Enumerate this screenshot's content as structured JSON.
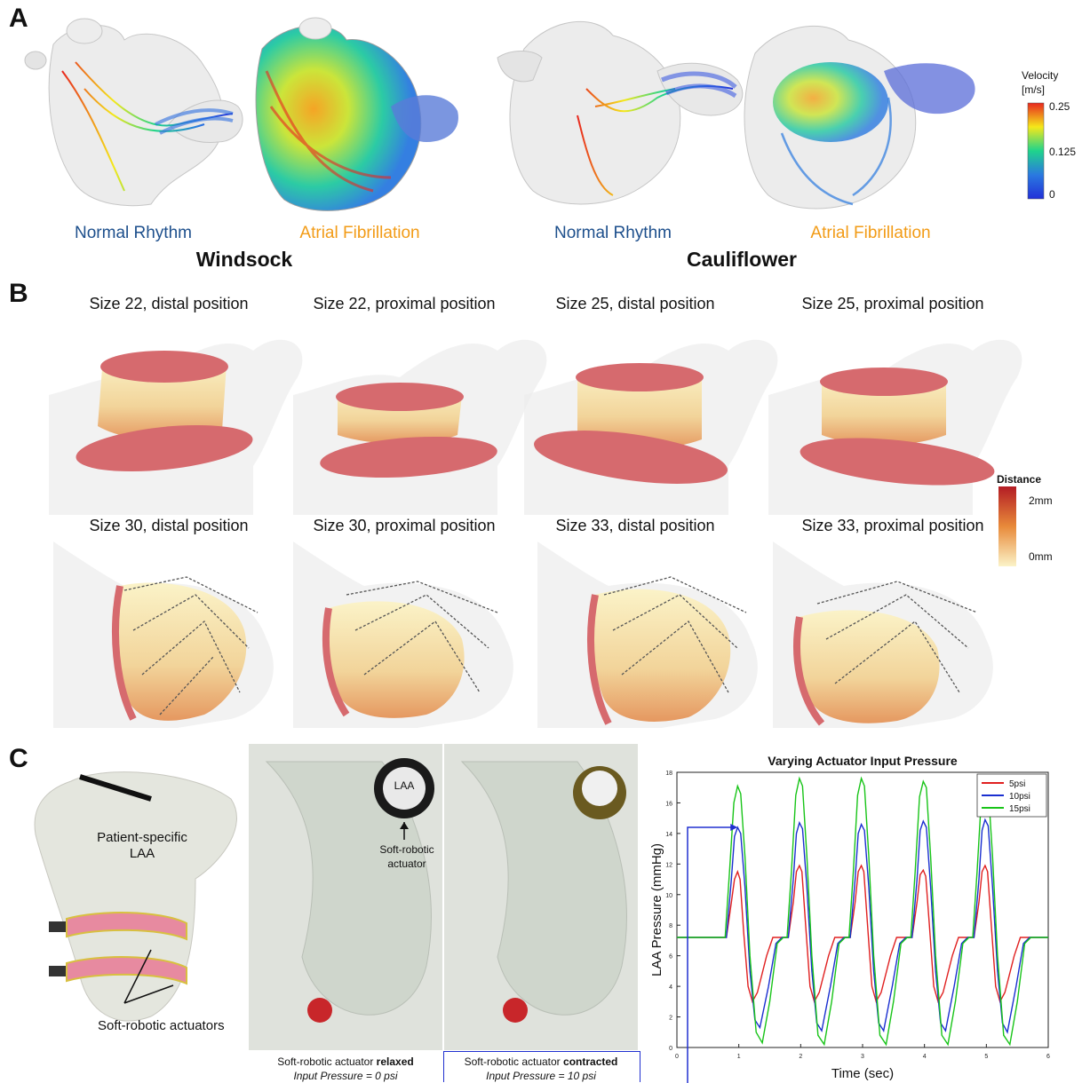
{
  "panelA": {
    "letter": "A",
    "models": [
      {
        "caption": "Normal Rhythm",
        "caption_color": "#1d4f8c"
      },
      {
        "caption": "Atrial Fibrillation",
        "caption_color": "#f29b16"
      },
      {
        "caption": "Normal Rhythm",
        "caption_color": "#1d4f8c"
      },
      {
        "caption": "Atrial Fibrillation",
        "caption_color": "#f29b16"
      }
    ],
    "groups": [
      "Windsock",
      "Cauliflower"
    ],
    "colorbar": {
      "title_line1": "Velocity",
      "title_line2": "[m/s]",
      "ticks": [
        "0.25",
        "0.125",
        "0"
      ],
      "colors": [
        "#e8271f",
        "#f5e81a",
        "#1fd48c",
        "#2a79e0",
        "#2230d8"
      ]
    }
  },
  "panelB": {
    "letter": "B",
    "titles": [
      "Size 22, distal position",
      "Size 22, proximal position",
      "Size 25, distal position",
      "Size 25, proximal position",
      "Size 30, distal position",
      "Size 30, proximal position",
      "Size 33, distal position",
      "Size 33, proximal position"
    ],
    "colorbar": {
      "title": "Distance",
      "ticks": [
        "2mm",
        "0mm"
      ],
      "colors": [
        "#b31c24",
        "#e88a3a",
        "#fbf3c8"
      ]
    }
  },
  "panelC": {
    "letter": "C",
    "device": {
      "label_line1": "Patient-specific",
      "label_line2": "LAA",
      "actuator_label": "Soft-robotic actuators"
    },
    "photo_relaxed": {
      "laa_label": "LAA",
      "actuator_label_line1": "Soft-robotic",
      "actuator_label_line2": "actuator",
      "caption_prefix": "Soft-robotic actuator ",
      "caption_bold": "relaxed",
      "caption_line2": "Input Pressure = 0 psi"
    },
    "photo_contracted": {
      "caption_prefix": "Soft-robotic actuator ",
      "caption_bold": "contracted",
      "caption_line2": "Input Pressure = 10 psi"
    }
  },
  "chart_data": {
    "type": "line",
    "title": "Varying Actuator Input Pressure",
    "xlabel": "Time (sec)",
    "ylabel": "LAA Pressure (mmHg)",
    "xlim": [
      0,
      6
    ],
    "ylim": [
      0,
      18
    ],
    "xticks": [
      "0",
      "1",
      "2",
      "3",
      "4",
      "5",
      "6"
    ],
    "yticks": [
      "0",
      "2",
      "4",
      "6",
      "8",
      "10",
      "12",
      "14",
      "16",
      "18"
    ],
    "legend_position": "top-right",
    "series": [
      {
        "name": "5psi",
        "color": "#e02020",
        "x": [
          0,
          0.8,
          0.88,
          0.93,
          0.98,
          1.02,
          1.08,
          1.15,
          1.22,
          1.3,
          1.45,
          1.55,
          1.6,
          1.68,
          1.8,
          1.88,
          1.93,
          1.98,
          2.02,
          2.08,
          2.15,
          2.22,
          2.3,
          2.45,
          2.55,
          2.6,
          2.68,
          2.8,
          2.88,
          2.93,
          2.98,
          3.02,
          3.08,
          3.15,
          3.22,
          3.3,
          3.45,
          3.55,
          3.6,
          3.68,
          3.8,
          3.88,
          3.93,
          3.98,
          4.02,
          4.08,
          4.15,
          4.22,
          4.3,
          4.45,
          4.55,
          4.6,
          4.68,
          4.8,
          4.88,
          4.93,
          4.98,
          5.02,
          5.08,
          5.15,
          5.22,
          5.3,
          5.45,
          5.55,
          5.6,
          5.7,
          6.0
        ],
        "y": [
          7.2,
          7.2,
          9.5,
          11.0,
          11.5,
          11.0,
          7.5,
          4.0,
          3.0,
          3.6,
          6.0,
          7.2,
          7.2,
          7.2,
          7.2,
          9.5,
          11.5,
          11.9,
          11.5,
          8.0,
          4.0,
          3.0,
          3.6,
          6.0,
          7.2,
          7.2,
          7.2,
          7.2,
          9.5,
          11.5,
          11.9,
          11.5,
          8.0,
          4.0,
          3.0,
          3.6,
          6.0,
          7.2,
          7.2,
          7.2,
          7.2,
          9.5,
          11.3,
          11.6,
          11.2,
          8.0,
          4.0,
          3.0,
          3.6,
          6.0,
          7.2,
          7.2,
          7.2,
          7.2,
          9.5,
          11.5,
          11.9,
          11.5,
          8.0,
          4.0,
          3.0,
          3.6,
          6.0,
          7.2,
          7.2,
          7.2,
          7.2
        ]
      },
      {
        "name": "10psi",
        "color": "#1a2fd0",
        "x": [
          0,
          0.8,
          0.88,
          0.93,
          0.98,
          1.03,
          1.1,
          1.18,
          1.26,
          1.34,
          1.48,
          1.6,
          1.7,
          1.8,
          1.88,
          1.93,
          1.98,
          2.03,
          2.1,
          2.18,
          2.26,
          2.34,
          2.48,
          2.6,
          2.7,
          2.8,
          2.88,
          2.93,
          2.98,
          3.03,
          3.1,
          3.18,
          3.26,
          3.34,
          3.48,
          3.6,
          3.7,
          3.8,
          3.88,
          3.93,
          3.98,
          4.03,
          4.1,
          4.18,
          4.26,
          4.34,
          4.48,
          4.6,
          4.7,
          4.8,
          4.88,
          4.93,
          4.98,
          5.03,
          5.1,
          5.18,
          5.26,
          5.34,
          5.48,
          5.6,
          5.7,
          6.0
        ],
        "y": [
          7.2,
          7.2,
          11.0,
          13.8,
          14.4,
          14.0,
          10.5,
          5.0,
          1.8,
          1.3,
          4.0,
          6.8,
          7.2,
          7.2,
          11.0,
          14.0,
          14.7,
          14.3,
          10.5,
          5.0,
          1.6,
          1.1,
          4.0,
          6.8,
          7.2,
          7.2,
          11.0,
          14.0,
          14.6,
          14.2,
          10.5,
          5.0,
          1.6,
          1.1,
          4.0,
          6.8,
          7.2,
          7.2,
          11.0,
          14.2,
          14.8,
          14.4,
          10.5,
          5.0,
          1.6,
          1.1,
          4.0,
          6.8,
          7.2,
          7.2,
          11.0,
          14.2,
          14.9,
          14.5,
          10.5,
          5.0,
          1.6,
          1.0,
          4.0,
          6.8,
          7.2,
          7.2
        ]
      },
      {
        "name": "15psi",
        "color": "#18c418",
        "x": [
          0,
          0.78,
          0.85,
          0.92,
          0.98,
          1.03,
          1.1,
          1.18,
          1.28,
          1.38,
          1.5,
          1.62,
          1.72,
          1.78,
          1.85,
          1.92,
          1.98,
          2.03,
          2.1,
          2.18,
          2.28,
          2.38,
          2.5,
          2.62,
          2.72,
          2.78,
          2.85,
          2.92,
          2.98,
          3.03,
          3.1,
          3.18,
          3.28,
          3.38,
          3.5,
          3.62,
          3.72,
          3.78,
          3.85,
          3.92,
          3.98,
          4.03,
          4.1,
          4.18,
          4.28,
          4.38,
          4.5,
          4.62,
          4.72,
          4.78,
          4.85,
          4.92,
          4.98,
          5.03,
          5.1,
          5.18,
          5.28,
          5.38,
          5.5,
          5.62,
          5.72,
          6.0
        ],
        "y": [
          7.2,
          7.2,
          11.5,
          16.0,
          17.1,
          16.6,
          12.5,
          6.0,
          1.0,
          0.3,
          3.0,
          6.8,
          7.2,
          7.2,
          11.5,
          16.5,
          17.6,
          17.1,
          12.5,
          6.0,
          0.8,
          0.2,
          3.0,
          6.8,
          7.2,
          7.2,
          11.5,
          16.5,
          17.6,
          17.1,
          12.5,
          6.0,
          0.8,
          0.2,
          3.0,
          6.8,
          7.2,
          7.2,
          11.5,
          16.4,
          17.4,
          17.0,
          12.5,
          6.0,
          0.8,
          0.2,
          3.0,
          6.8,
          7.2,
          7.2,
          11.5,
          16.4,
          17.4,
          17.0,
          12.5,
          6.0,
          0.8,
          0.2,
          3.0,
          6.8,
          7.2,
          7.2
        ]
      }
    ]
  }
}
